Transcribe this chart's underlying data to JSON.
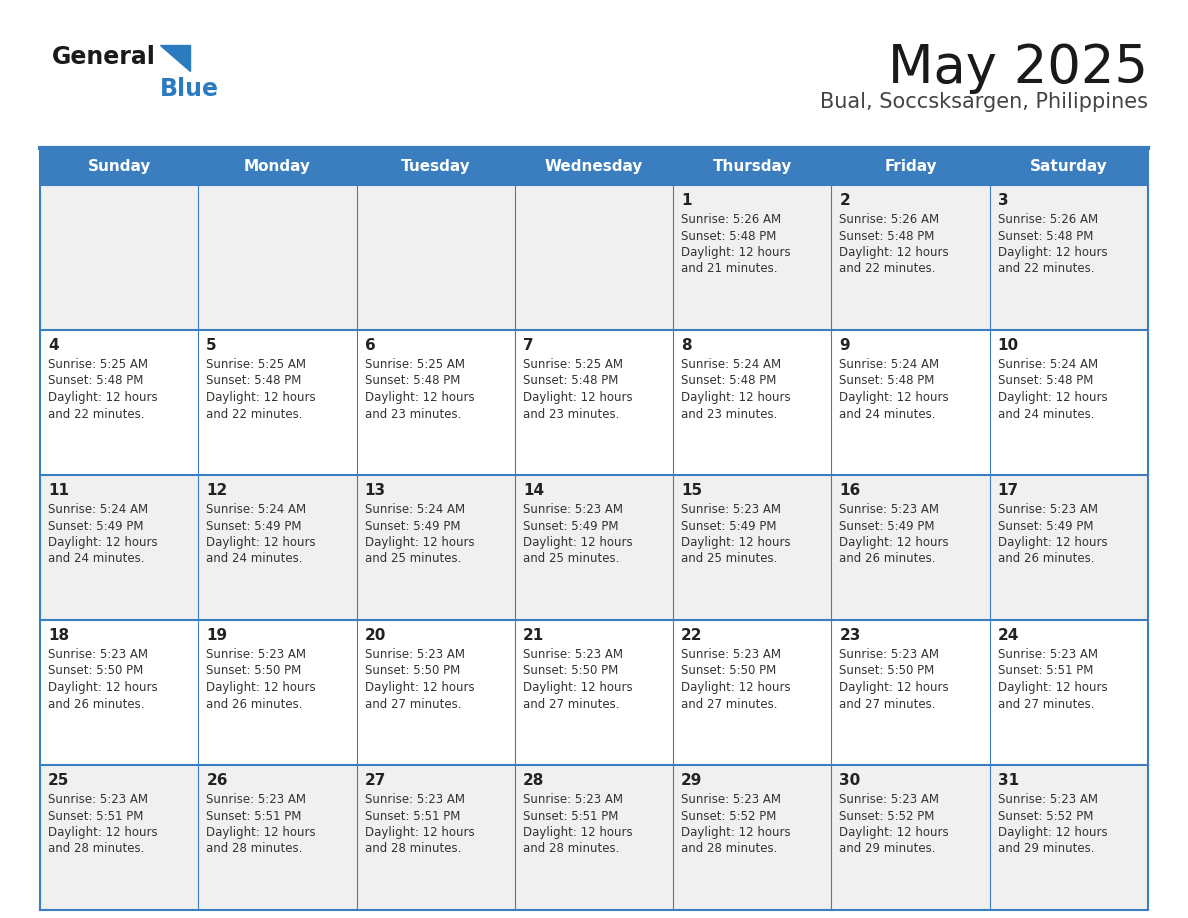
{
  "title": "May 2025",
  "subtitle": "Bual, Soccsksargen, Philippines",
  "days_of_week": [
    "Sunday",
    "Monday",
    "Tuesday",
    "Wednesday",
    "Thursday",
    "Friday",
    "Saturday"
  ],
  "header_bg": "#3a7ebf",
  "header_text": "#ffffff",
  "row_bg_odd": "#f0f0f0",
  "row_bg_even": "#ffffff",
  "cell_border": "#3a7ebf",
  "day_number_color": "#222222",
  "text_color": "#333333",
  "title_color": "#1a1a1a",
  "subtitle_color": "#444444",
  "logo_general_color": "#1a1a1a",
  "logo_blue_color": "#2b7bbf",
  "calendar_data": [
    [
      null,
      null,
      null,
      null,
      {
        "day": 1,
        "sunrise": "5:26 AM",
        "sunset": "5:48 PM",
        "daylight_min": "21"
      },
      {
        "day": 2,
        "sunrise": "5:26 AM",
        "sunset": "5:48 PM",
        "daylight_min": "22"
      },
      {
        "day": 3,
        "sunrise": "5:26 AM",
        "sunset": "5:48 PM",
        "daylight_min": "22"
      }
    ],
    [
      {
        "day": 4,
        "sunrise": "5:25 AM",
        "sunset": "5:48 PM",
        "daylight_min": "22"
      },
      {
        "day": 5,
        "sunrise": "5:25 AM",
        "sunset": "5:48 PM",
        "daylight_min": "22"
      },
      {
        "day": 6,
        "sunrise": "5:25 AM",
        "sunset": "5:48 PM",
        "daylight_min": "23"
      },
      {
        "day": 7,
        "sunrise": "5:25 AM",
        "sunset": "5:48 PM",
        "daylight_min": "23"
      },
      {
        "day": 8,
        "sunrise": "5:24 AM",
        "sunset": "5:48 PM",
        "daylight_min": "23"
      },
      {
        "day": 9,
        "sunrise": "5:24 AM",
        "sunset": "5:48 PM",
        "daylight_min": "24"
      },
      {
        "day": 10,
        "sunrise": "5:24 AM",
        "sunset": "5:48 PM",
        "daylight_min": "24"
      }
    ],
    [
      {
        "day": 11,
        "sunrise": "5:24 AM",
        "sunset": "5:49 PM",
        "daylight_min": "24"
      },
      {
        "day": 12,
        "sunrise": "5:24 AM",
        "sunset": "5:49 PM",
        "daylight_min": "24"
      },
      {
        "day": 13,
        "sunrise": "5:24 AM",
        "sunset": "5:49 PM",
        "daylight_min": "25"
      },
      {
        "day": 14,
        "sunrise": "5:23 AM",
        "sunset": "5:49 PM",
        "daylight_min": "25"
      },
      {
        "day": 15,
        "sunrise": "5:23 AM",
        "sunset": "5:49 PM",
        "daylight_min": "25"
      },
      {
        "day": 16,
        "sunrise": "5:23 AM",
        "sunset": "5:49 PM",
        "daylight_min": "26"
      },
      {
        "day": 17,
        "sunrise": "5:23 AM",
        "sunset": "5:49 PM",
        "daylight_min": "26"
      }
    ],
    [
      {
        "day": 18,
        "sunrise": "5:23 AM",
        "sunset": "5:50 PM",
        "daylight_min": "26"
      },
      {
        "day": 19,
        "sunrise": "5:23 AM",
        "sunset": "5:50 PM",
        "daylight_min": "26"
      },
      {
        "day": 20,
        "sunrise": "5:23 AM",
        "sunset": "5:50 PM",
        "daylight_min": "27"
      },
      {
        "day": 21,
        "sunrise": "5:23 AM",
        "sunset": "5:50 PM",
        "daylight_min": "27"
      },
      {
        "day": 22,
        "sunrise": "5:23 AM",
        "sunset": "5:50 PM",
        "daylight_min": "27"
      },
      {
        "day": 23,
        "sunrise": "5:23 AM",
        "sunset": "5:50 PM",
        "daylight_min": "27"
      },
      {
        "day": 24,
        "sunrise": "5:23 AM",
        "sunset": "5:51 PM",
        "daylight_min": "27"
      }
    ],
    [
      {
        "day": 25,
        "sunrise": "5:23 AM",
        "sunset": "5:51 PM",
        "daylight_min": "28"
      },
      {
        "day": 26,
        "sunrise": "5:23 AM",
        "sunset": "5:51 PM",
        "daylight_min": "28"
      },
      {
        "day": 27,
        "sunrise": "5:23 AM",
        "sunset": "5:51 PM",
        "daylight_min": "28"
      },
      {
        "day": 28,
        "sunrise": "5:23 AM",
        "sunset": "5:51 PM",
        "daylight_min": "28"
      },
      {
        "day": 29,
        "sunrise": "5:23 AM",
        "sunset": "5:52 PM",
        "daylight_min": "28"
      },
      {
        "day": 30,
        "sunrise": "5:23 AM",
        "sunset": "5:52 PM",
        "daylight_min": "29"
      },
      {
        "day": 31,
        "sunrise": "5:23 AM",
        "sunset": "5:52 PM",
        "daylight_min": "29"
      }
    ]
  ]
}
